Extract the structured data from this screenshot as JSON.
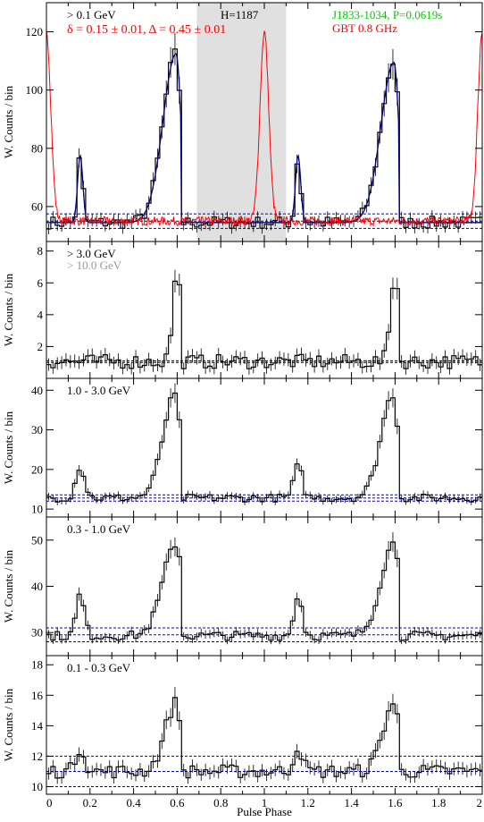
{
  "figure": {
    "x_axis_label": "Pulse Phase",
    "y_axis_label": "W. Counts / bin",
    "x_ticks": [
      "0",
      "0.2",
      "0.4",
      "0.6",
      "0.8",
      "1",
      "1.2",
      "1.4",
      "1.6",
      "1.8",
      "2"
    ]
  },
  "chart_data": [
    {
      "type": "line",
      "energy_label": "> 0.1 GeV",
      "fit_label": "δ = 0.15 ± 0.01, Δ = 0.45 ± 0.01",
      "h_label": "H=1187",
      "pulsar_label": "J1833-1034, P=0.0619s",
      "radio_label": "GBT 0.8 GHz",
      "colors": {
        "energy_label": "#000000",
        "fit_label": "#ff0000",
        "h_label": "#000000",
        "pulsar_label": "#00cc00",
        "radio_label": "#ff0000",
        "fit_curve": "#000080",
        "radio_curve": "#ff0000",
        "bg_lines": "#0000cc",
        "off_pulse": "#e0e0e0"
      },
      "ylim": [
        48,
        130
      ],
      "yticks": [
        60,
        80,
        100,
        120
      ],
      "base": 54.5,
      "noise": 2.2,
      "off_pulse_window": [
        0.69,
        1.1
      ],
      "peaks": [
        {
          "center": 0.155,
          "height": 23,
          "width": 0.012
        },
        {
          "center": 0.595,
          "height": 58,
          "width": 0.022,
          "left_tail": 0.06,
          "cut": 0.62
        },
        {
          "center": 1.155,
          "height": 23,
          "width": 0.012
        },
        {
          "center": 1.595,
          "height": 55,
          "width": 0.022,
          "left_tail": 0.06,
          "cut": 1.62
        }
      ],
      "background_levels": [
        52.5,
        55.0,
        57.5
      ],
      "fit_curve": true,
      "radio_curve": true
    },
    {
      "type": "line",
      "energy_label": "> 3.0 GeV",
      "energy_label_2": "> 10.0 GeV",
      "colors": {
        "energy_label": "#000000",
        "energy_label_2": "#999999",
        "bg_lines": "#000000"
      },
      "ylim": [
        0,
        8.6
      ],
      "yticks": [
        2,
        4,
        6,
        8
      ],
      "base": 1.05,
      "noise": 0.45,
      "peaks": [
        {
          "center": 0.6,
          "height": 5.6,
          "width": 0.016,
          "left_tail": 0.02,
          "cut": 0.62
        },
        {
          "center": 1.6,
          "height": 5.6,
          "width": 0.016,
          "left_tail": 0.02,
          "cut": 1.62
        }
      ],
      "background_levels": [
        1.0,
        1.1
      ]
    },
    {
      "type": "line",
      "energy_label": "1.0 - 3.0 GeV",
      "colors": {
        "energy_label": "#000000",
        "bg_lines": "#0000cc"
      },
      "ylim": [
        8,
        43
      ],
      "yticks": [
        10,
        20,
        30,
        40
      ],
      "base": 12.8,
      "noise": 1.0,
      "peaks": [
        {
          "center": 0.155,
          "height": 8,
          "width": 0.02
        },
        {
          "center": 0.59,
          "height": 26,
          "width": 0.025,
          "left_tail": 0.055,
          "cut": 0.62
        },
        {
          "center": 1.155,
          "height": 8,
          "width": 0.02
        },
        {
          "center": 1.59,
          "height": 26,
          "width": 0.025,
          "left_tail": 0.055,
          "cut": 1.62
        }
      ],
      "background_levels": [
        12.0,
        12.8,
        13.6
      ]
    },
    {
      "type": "line",
      "energy_label": "0.3 - 1.0 GeV",
      "colors": {
        "energy_label": "#000000",
        "bg_lines": "#0000cc"
      },
      "ylim": [
        25,
        55
      ],
      "yticks": [
        30,
        40,
        50
      ],
      "base": 29.3,
      "noise": 1.0,
      "peaks": [
        {
          "center": 0.155,
          "height": 9,
          "width": 0.018
        },
        {
          "center": 0.595,
          "height": 20,
          "width": 0.028,
          "left_tail": 0.06,
          "cut": 0.625
        },
        {
          "center": 1.155,
          "height": 9,
          "width": 0.018
        },
        {
          "center": 1.595,
          "height": 20,
          "width": 0.028,
          "left_tail": 0.06,
          "cut": 1.625
        }
      ],
      "background_levels": [
        28.0,
        29.5,
        31.0
      ]
    },
    {
      "type": "line",
      "energy_label": "0.1 - 0.3 GeV",
      "colors": {
        "energy_label": "#000000",
        "bg_lines": "#0000cc"
      },
      "ylim": [
        9.5,
        18.6
      ],
      "yticks": [
        10,
        12,
        14,
        16,
        18
      ],
      "base": 11.0,
      "noise": 0.45,
      "peaks": [
        {
          "center": 0.155,
          "height": 1.6,
          "width": 0.02
        },
        {
          "center": 0.595,
          "height": 4.5,
          "width": 0.022,
          "left_tail": 0.05,
          "cut": 0.62
        },
        {
          "center": 1.155,
          "height": 1.6,
          "width": 0.02
        },
        {
          "center": 1.595,
          "height": 4.5,
          "width": 0.022,
          "left_tail": 0.05,
          "cut": 1.62
        }
      ],
      "background_levels": [
        10.0,
        11.0,
        12.0
      ]
    }
  ]
}
